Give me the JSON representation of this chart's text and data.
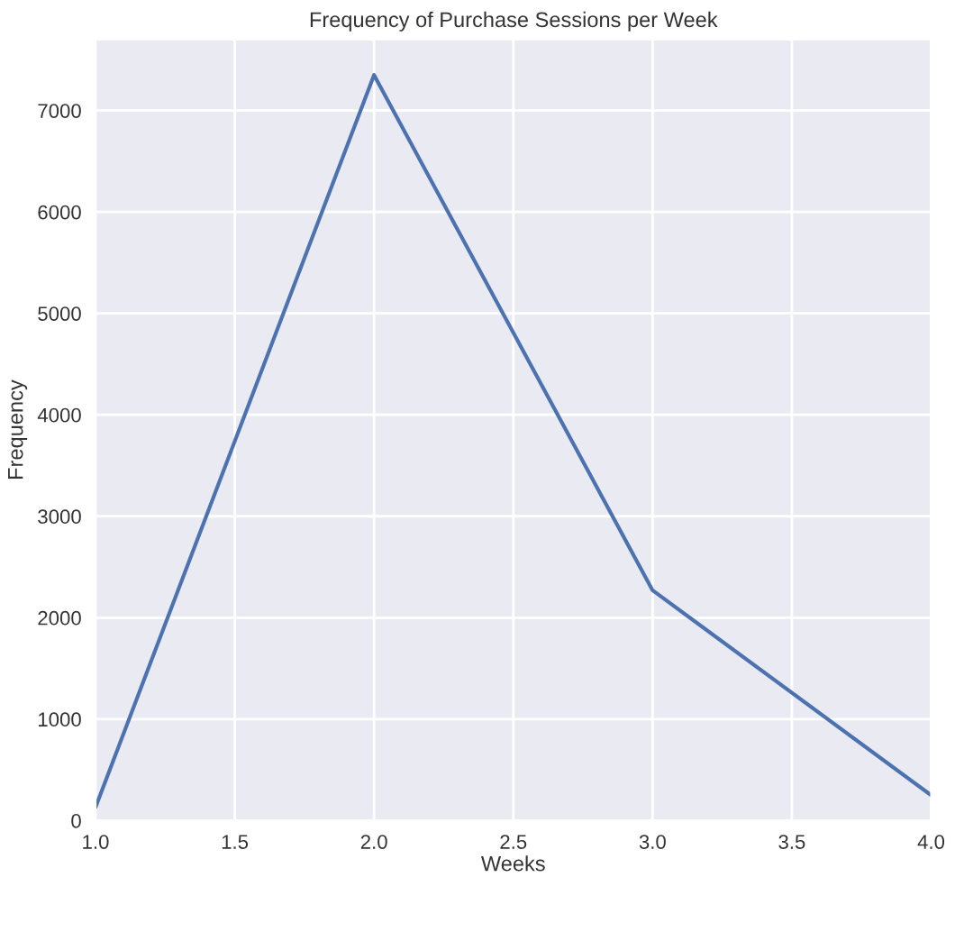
{
  "chart_data": {
    "type": "line",
    "title": "Frequency of Purchase Sessions per Week",
    "xlabel": "Weeks",
    "ylabel": "Frequency",
    "x": [
      1,
      2,
      3,
      4
    ],
    "series": [
      {
        "color": "#4c72b0",
        "values": [
          130,
          7350,
          2270,
          250
        ]
      }
    ],
    "xlim": [
      1,
      4
    ],
    "xticks": [
      {
        "value": 1,
        "label": "1.0"
      },
      {
        "value": 1.5,
        "label": "1.5"
      },
      {
        "value": 2,
        "label": "2.0"
      },
      {
        "value": 2.5,
        "label": "2.5"
      },
      {
        "value": 3,
        "label": "3.0"
      },
      {
        "value": 3.5,
        "label": "3.5"
      },
      {
        "value": 4,
        "label": "4.0"
      }
    ],
    "ylim": [
      0,
      7700
    ],
    "yticks": [
      0,
      1000,
      2000,
      3000,
      4000,
      5000,
      6000,
      7000
    ],
    "grid": true,
    "line_style": "solid"
  }
}
